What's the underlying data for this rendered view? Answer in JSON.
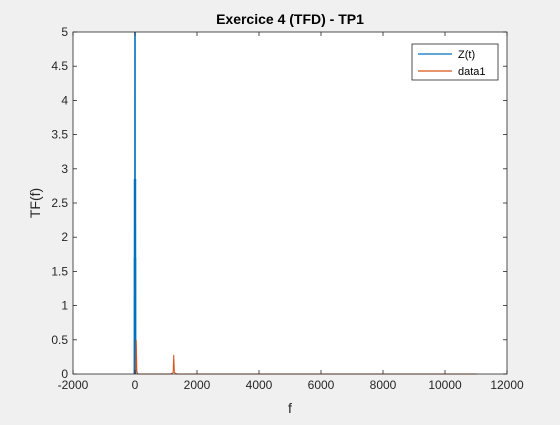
{
  "chart_data": {
    "type": "line",
    "title": "Exercice 4 (TFD) - TP1",
    "xlabel": "f",
    "ylabel": "TF(f)",
    "xlim": [
      -2000,
      12000
    ],
    "ylim": [
      0,
      5
    ],
    "xticks": [
      -2000,
      0,
      2000,
      4000,
      6000,
      8000,
      10000,
      12000
    ],
    "xtick_labels": [
      "-2000",
      "0",
      "2000",
      "4000",
      "6000",
      "8000",
      "10000",
      "12000"
    ],
    "yticks": [
      0,
      0.5,
      1,
      1.5,
      2,
      2.5,
      3,
      3.5,
      4,
      4.5,
      5
    ],
    "ytick_labels": [
      "0",
      "0.5",
      "1",
      "1.5",
      "2",
      "2.5",
      "3",
      "3.5",
      "4",
      "4.5",
      "5"
    ],
    "grid": false,
    "legend_position": "top-right",
    "series": [
      {
        "name": "Z(t)",
        "color": "#0072BD",
        "x": [
          -20,
          -18,
          -16,
          -14,
          -12,
          -10,
          -8,
          -6,
          -4,
          -2,
          0,
          2,
          4,
          6,
          8,
          10,
          12,
          14,
          16,
          18,
          20
        ],
        "y": [
          0,
          1.7,
          0,
          2.85,
          0,
          1.7,
          0,
          2.85,
          0,
          1.7,
          5.0,
          1.7,
          0,
          2.85,
          0,
          1.7,
          0,
          2.85,
          0,
          1.7,
          0
        ]
      },
      {
        "name": "data1",
        "color": "#D95319",
        "x": [
          0,
          20,
          40,
          60,
          80,
          100,
          150,
          300,
          600,
          900,
          1150,
          1230,
          1250,
          1270,
          1350,
          1600,
          2000,
          3000,
          4000,
          5000,
          6000,
          7000,
          8000,
          9000,
          10000,
          11000,
          11025
        ],
        "y": [
          0,
          0.05,
          0.5,
          0.05,
          0.01,
          0,
          0,
          0,
          0,
          0,
          0,
          0.02,
          0.28,
          0.02,
          0,
          0,
          0,
          0,
          0,
          0,
          0,
          0,
          0,
          0,
          0,
          0,
          0
        ]
      }
    ]
  }
}
